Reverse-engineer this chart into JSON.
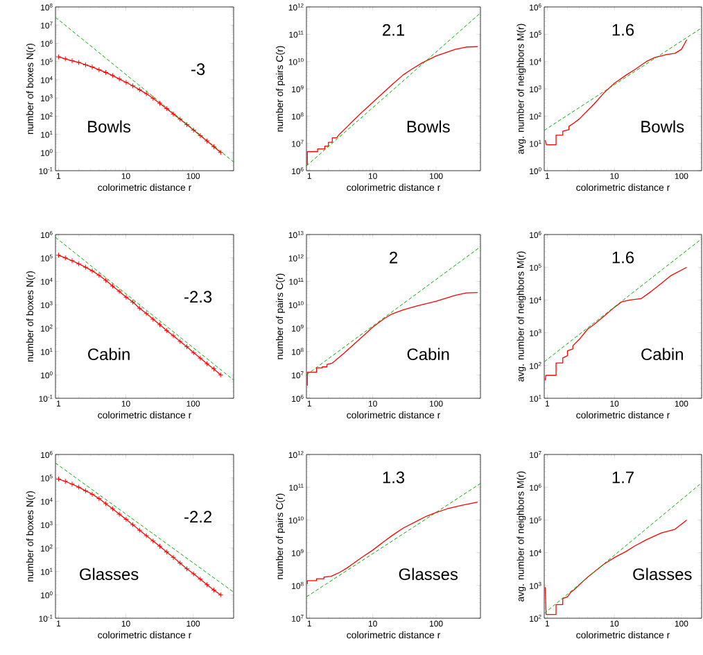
{
  "chart_data": [
    {
      "type": "line",
      "xlabel": "colorimetric distance r",
      "ylabel": "number of boxes N(r)",
      "annotations": [
        "-3",
        "Bowls"
      ],
      "log": "xy",
      "xlim": [
        0.9,
        400
      ],
      "ylim": [
        0.1,
        100000000.0
      ],
      "xticks": [
        1,
        10,
        100
      ],
      "yticks": [
        {
          "value": 0.1,
          "label": "10$^{-1}$"
        },
        {
          "value": 1,
          "label": "10$^{0}$"
        },
        {
          "value": 10,
          "label": "10$^{1}$"
        },
        {
          "value": 100,
          "label": "10$^{2}$"
        },
        {
          "value": 1000.0,
          "label": "10$^{3}$"
        },
        {
          "value": 10000.0,
          "label": "10$^{4}$"
        },
        {
          "value": 100000.0,
          "label": "10$^{5}$"
        },
        {
          "value": 1000000.0,
          "label": "10$^{6}$"
        },
        {
          "value": 10000000.0,
          "label": "10$^{7}$"
        },
        {
          "value": 100000000.0,
          "label": "10$^{8}$"
        }
      ],
      "series": [
        {
          "color": "#ff0000",
          "marker": "cross",
          "x": [
            1,
            1.26,
            1.59,
            2,
            2.52,
            3.17,
            4,
            5.04,
            6.35,
            8,
            10.1,
            12.7,
            16,
            20.2,
            25.4,
            32,
            40.3,
            50.8,
            64,
            80.6,
            101.6,
            128,
            161,
            203,
            256
          ],
          "values": [
            180000.0,
            140000.0,
            110000.0,
            89000.0,
            66000.0,
            50000.0,
            35000.0,
            25000.0,
            17000.0,
            11000.0,
            7100.0,
            4600.0,
            2800.0,
            1700.0,
            950,
            500,
            260,
            130,
            68,
            34,
            17,
            8.5,
            4.3,
            2.1,
            1
          ]
        },
        {
          "color": "#00b000",
          "line_style": "dashed",
          "x": [
            0.9,
            400
          ],
          "values": [
            27000000.0,
            0.3
          ]
        }
      ]
    },
    {
      "type": "line",
      "xlabel": "colorimetric distance r",
      "ylabel": "number of pairs C(r)",
      "annotations": [
        "2.1",
        "Bowls"
      ],
      "log": "xy",
      "xlim": [
        0.9,
        500
      ],
      "ylim": [
        1000000.0,
        1000000000000.0
      ],
      "xticks": [
        1,
        10,
        100
      ],
      "yticks": [
        {
          "value": 1000000.0,
          "label": "10$^{6}$"
        },
        {
          "value": 10000000.0,
          "label": "10$^{7}$"
        },
        {
          "value": 100000000.0,
          "label": "10$^{8}$"
        },
        {
          "value": 1000000000.0,
          "label": "10$^{9}$"
        },
        {
          "value": 10000000000.0,
          "label": "10$^{10}$"
        },
        {
          "value": 100000000000.0,
          "label": "10$^{11}$"
        },
        {
          "value": 1000000000000.0,
          "label": "10$^{12}$"
        }
      ],
      "series": [
        {
          "color": "#ff0000",
          "x": [
            0.93,
            0.93,
            1.35,
            1.35,
            1.75,
            1.75,
            2.0,
            2.0,
            2.3,
            2.3,
            2.7,
            3,
            4,
            5,
            7,
            10,
            15,
            20,
            30,
            40,
            60,
            100,
            150,
            200,
            300,
            450
          ],
          "values": [
            1600000.0,
            5000000.0,
            5000000.0,
            6300000.0,
            6300000.0,
            7900000.0,
            7900000.0,
            11000000.0,
            11000000.0,
            16000000.0,
            16000000.0,
            22000000.0,
            42000000.0,
            71000000.0,
            150000000.0,
            320000000.0,
            760000000.0,
            1400000000.0,
            3200000000.0,
            5000000000.0,
            8900000000.0,
            16000000000.0,
            22000000000.0,
            28000000000.0,
            34000000000.0,
            35000000000.0
          ]
        },
        {
          "color": "#00b000",
          "line_style": "dashed",
          "x": [
            0.9,
            500
          ],
          "values": [
            1500000.0,
            600000000000.0
          ]
        }
      ]
    },
    {
      "type": "line",
      "xlabel": "colorimetric distance r",
      "ylabel": "avg. number of neighbors M(r)",
      "annotations": [
        "1.6",
        "Bowls"
      ],
      "log": "xy",
      "xlim": [
        0.9,
        200
      ],
      "ylim": [
        1,
        1000000.0
      ],
      "xticks": [
        1,
        10,
        100
      ],
      "yticks": [
        {
          "value": 1,
          "label": "10$^{0}$"
        },
        {
          "value": 10,
          "label": "10$^{1}$"
        },
        {
          "value": 100,
          "label": "10$^{2}$"
        },
        {
          "value": 1000.0,
          "label": "10$^{3}$"
        },
        {
          "value": 10000.0,
          "label": "10$^{4}$"
        },
        {
          "value": 100000.0,
          "label": "10$^{5}$"
        },
        {
          "value": 1000000.0,
          "label": "10$^{6}$"
        }
      ],
      "series": [
        {
          "color": "#ff0000",
          "x": [
            0.93,
            0.97,
            1.35,
            1.35,
            1.7,
            1.7,
            2.1,
            2.1,
            2.5,
            3,
            4,
            5,
            7,
            10,
            15,
            20,
            30,
            40,
            60,
            80,
            100,
            120
          ],
          "values": [
            13,
            8.9,
            8.9,
            20,
            20,
            28,
            32,
            42,
            56,
            79,
            160,
            280,
            710,
            1600.0,
            3200.0,
            5000.0,
            10000.0,
            14000.0,
            18000.0,
            20000.0,
            28000.0,
            63000.0
          ]
        },
        {
          "color": "#00b000",
          "line_style": "dashed",
          "x": [
            0.9,
            200
          ],
          "values": [
            30,
            170000.0
          ]
        }
      ]
    },
    {
      "type": "line",
      "xlabel": "colorimetric distance r",
      "ylabel": "number of boxes N(r)",
      "annotations": [
        "-2.3",
        "Cabin"
      ],
      "log": "xy",
      "xlim": [
        0.9,
        400
      ],
      "ylim": [
        0.1,
        1000000.0
      ],
      "xticks": [
        1,
        10,
        100
      ],
      "yticks": [
        {
          "value": 0.1,
          "label": "10$^{-1}$"
        },
        {
          "value": 1,
          "label": "10$^{0}$"
        },
        {
          "value": 10,
          "label": "10$^{1}$"
        },
        {
          "value": 100,
          "label": "10$^{2}$"
        },
        {
          "value": 1000.0,
          "label": "10$^{3}$"
        },
        {
          "value": 10000.0,
          "label": "10$^{4}$"
        },
        {
          "value": 100000.0,
          "label": "10$^{5}$"
        },
        {
          "value": 1000000.0,
          "label": "10$^{6}$"
        }
      ],
      "series": [
        {
          "color": "#ff0000",
          "marker": "cross",
          "x": [
            1,
            1.26,
            1.59,
            2,
            2.52,
            3.17,
            4,
            5.04,
            6.35,
            8,
            10.1,
            12.7,
            16,
            20.2,
            25.4,
            32,
            40.3,
            50.8,
            64,
            80.6,
            101.6,
            128,
            161,
            203,
            256
          ],
          "values": [
            130000.0,
            100000.0,
            76000.0,
            56000.0,
            40000.0,
            28000.0,
            18000.0,
            11000.0,
            6300.0,
            3700.0,
            2100.0,
            1300.0,
            710,
            420,
            240,
            140,
            79,
            47,
            27,
            16,
            8.9,
            5.2,
            3,
            1.8,
            1
          ]
        },
        {
          "color": "#00b000",
          "line_style": "dashed",
          "x": [
            0.9,
            400
          ],
          "values": [
            760000.0,
            0.6
          ]
        }
      ]
    },
    {
      "type": "line",
      "xlabel": "colorimetric distance r",
      "ylabel": "number of pairs C(r)",
      "annotations": [
        "2",
        "Cabin"
      ],
      "log": "xy",
      "xlim": [
        0.9,
        500
      ],
      "ylim": [
        1000000.0,
        10000000000000.0
      ],
      "xticks": [
        1,
        10,
        100
      ],
      "yticks": [
        {
          "value": 1000000.0,
          "label": "10$^{6}$"
        },
        {
          "value": 10000000.0,
          "label": "10$^{7}$"
        },
        {
          "value": 100000000.0,
          "label": "10$^{8}$"
        },
        {
          "value": 1000000000.0,
          "label": "10$^{9}$"
        },
        {
          "value": 10000000000.0,
          "label": "10$^{10}$"
        },
        {
          "value": 100000000000.0,
          "label": "10$^{11}$"
        },
        {
          "value": 1000000000000.0,
          "label": "10$^{12}$"
        },
        {
          "value": 10000000000000.0,
          "label": "10$^{13}$"
        }
      ],
      "series": [
        {
          "color": "#ff0000",
          "x": [
            0.93,
            0.93,
            1.3,
            1.3,
            1.6,
            1.6,
            1.9,
            1.9,
            2.3,
            2.8,
            3.5,
            5,
            7,
            10,
            15,
            20,
            30,
            50,
            100,
            200,
            300,
            450
          ],
          "values": [
            3500000.0,
            13000000.0,
            13000000.0,
            20000000.0,
            20000000.0,
            22000000.0,
            22000000.0,
            28000000.0,
            32000000.0,
            50000000.0,
            83000000.0,
            200000000.0,
            450000000.0,
            1100000000.0,
            2500000000.0,
            4000000000.0,
            6000000000.0,
            8900000000.0,
            14000000000.0,
            25000000000.0,
            32000000000.0,
            33000000000.0
          ]
        },
        {
          "color": "#00b000",
          "line_style": "dashed",
          "x": [
            0.9,
            500
          ],
          "values": [
            10000000.0,
            3000000000000.0
          ]
        }
      ]
    },
    {
      "type": "line",
      "xlabel": "colorimetric distance r",
      "ylabel": "avg. number of neighbors M(r)",
      "annotations": [
        "1.6",
        "Cabin"
      ],
      "log": "xy",
      "xlim": [
        0.9,
        200
      ],
      "ylim": [
        10,
        1000000.0
      ],
      "xticks": [
        1,
        10,
        100
      ],
      "yticks": [
        {
          "value": 10,
          "label": "10$^{1}$"
        },
        {
          "value": 100,
          "label": "10$^{2}$"
        },
        {
          "value": 1000.0,
          "label": "10$^{3}$"
        },
        {
          "value": 10000.0,
          "label": "10$^{4}$"
        },
        {
          "value": 100000.0,
          "label": "10$^{5}$"
        },
        {
          "value": 1000000.0,
          "label": "10$^{6}$"
        }
      ],
      "series": [
        {
          "color": "#ff0000",
          "x": [
            0.93,
            0.95,
            1.35,
            1.35,
            1.7,
            1.7,
            2.0,
            2.0,
            2.4,
            2.4,
            3,
            4,
            5,
            7,
            10,
            13,
            17,
            25,
            35,
            50,
            70,
            120
          ],
          "values": [
            35,
            50,
            50,
            120,
            120,
            170,
            200,
            280,
            320,
            400,
            630,
            1300.0,
            1800.0,
            3200.0,
            6000.0,
            8900.0,
            10000.0,
            11000.0,
            18000.0,
            32000.0,
            56000.0,
            100000.0
          ]
        },
        {
          "color": "#00b000",
          "line_style": "dashed",
          "x": [
            0.9,
            200
          ],
          "values": [
            130,
            740000.0
          ]
        }
      ]
    },
    {
      "type": "line",
      "xlabel": "colorimetric distance r",
      "ylabel": "number of boxes N(r)",
      "annotations": [
        "-2.2",
        "Glasses"
      ],
      "log": "xy",
      "xlim": [
        0.9,
        400
      ],
      "ylim": [
        0.1,
        1000000.0
      ],
      "xticks": [
        1,
        10,
        100
      ],
      "yticks": [
        {
          "value": 0.1,
          "label": "10$^{-1}$"
        },
        {
          "value": 1,
          "label": "10$^{0}$"
        },
        {
          "value": 10,
          "label": "10$^{1}$"
        },
        {
          "value": 100,
          "label": "10$^{2}$"
        },
        {
          "value": 1000.0,
          "label": "10$^{3}$"
        },
        {
          "value": 10000.0,
          "label": "10$^{4}$"
        },
        {
          "value": 100000.0,
          "label": "10$^{5}$"
        },
        {
          "value": 1000000.0,
          "label": "10$^{6}$"
        }
      ],
      "series": [
        {
          "color": "#ff0000",
          "marker": "cross",
          "x": [
            1,
            1.26,
            1.59,
            2,
            2.52,
            3.17,
            4,
            5.04,
            6.35,
            8,
            10.1,
            12.7,
            16,
            20.2,
            25.4,
            32,
            40.3,
            50.8,
            64,
            80.6,
            101.6,
            128,
            161,
            203,
            256
          ],
          "values": [
            89000.0,
            71000.0,
            54000.0,
            40000.0,
            28000.0,
            20000.0,
            13000.0,
            7900.0,
            4800.0,
            2800.0,
            1700.0,
            1000.0,
            580,
            340,
            200,
            120,
            68,
            40,
            23,
            13,
            7.9,
            4.7,
            2.7,
            1.6,
            1
          ]
        },
        {
          "color": "#00b000",
          "line_style": "dashed",
          "x": [
            0.9,
            400
          ],
          "values": [
            430000.0,
            1.3
          ]
        }
      ]
    },
    {
      "type": "line",
      "xlabel": "colorimetric distance r",
      "ylabel": "number of pairs C(r)",
      "annotations": [
        "1.3",
        "Glasses"
      ],
      "log": "xy",
      "xlim": [
        0.9,
        500
      ],
      "ylim": [
        10000000.0,
        1000000000000.0
      ],
      "xticks": [
        1,
        10,
        100
      ],
      "yticks": [
        {
          "value": 10000000.0,
          "label": "10$^{7}$"
        },
        {
          "value": 100000000.0,
          "label": "10$^{8}$"
        },
        {
          "value": 1000000000.0,
          "label": "10$^{9}$"
        },
        {
          "value": 10000000000.0,
          "label": "10$^{10}$"
        },
        {
          "value": 100000000000.0,
          "label": "10$^{11}$"
        },
        {
          "value": 1000000000000.0,
          "label": "10$^{12}$"
        }
      ],
      "series": [
        {
          "color": "#ff0000",
          "x": [
            0.93,
            0.93,
            1.3,
            1.3,
            1.7,
            1.7,
            2.2,
            3,
            4,
            5,
            7,
            10,
            15,
            20,
            30,
            50,
            70,
            100,
            150,
            250,
            450
          ],
          "values": [
            110000000.0,
            140000000.0,
            140000000.0,
            160000000.0,
            160000000.0,
            180000000.0,
            190000000.0,
            250000000.0,
            350000000.0,
            480000000.0,
            760000000.0,
            1200000000.0,
            2200000000.0,
            3300000000.0,
            5600000000.0,
            9300000000.0,
            13000000000.0,
            17000000000.0,
            22000000000.0,
            28000000000.0,
            35000000000.0
          ]
        },
        {
          "color": "#00b000",
          "line_style": "dashed",
          "x": [
            0.9,
            500
          ],
          "values": [
            45000000.0,
            130000000000.0
          ]
        }
      ]
    },
    {
      "type": "line",
      "xlabel": "colorimetric distance r",
      "ylabel": "avg. number of neighbors M(r)",
      "annotations": [
        "1.7",
        "Glasses"
      ],
      "log": "xy",
      "xlim": [
        0.9,
        200
      ],
      "ylim": [
        100,
        10000000.0
      ],
      "xticks": [
        1,
        10,
        100
      ],
      "yticks": [
        {
          "value": 100,
          "label": "10$^{2}$"
        },
        {
          "value": 1000.0,
          "label": "10$^{3}$"
        },
        {
          "value": 10000.0,
          "label": "10$^{4}$"
        },
        {
          "value": 100000.0,
          "label": "10$^{5}$"
        },
        {
          "value": 1000000.0,
          "label": "10$^{6}$"
        },
        {
          "value": 10000000.0,
          "label": "10$^{7}$"
        }
      ],
      "series": [
        {
          "color": "#ff0000",
          "x": [
            0.93,
            0.96,
            1.35,
            1.35,
            1.7,
            1.7,
            2.0,
            2.2,
            2.6,
            3,
            4,
            5,
            7,
            10,
            15,
            20,
            30,
            50,
            80,
            120
          ],
          "values": [
            890,
            130,
            130,
            260,
            260,
            400,
            450,
            600,
            790,
            1050.0,
            1800.0,
            2600.0,
            4500.0,
            7100.0,
            11000.0,
            16000.0,
            25000.0,
            40000.0,
            52000.0,
            100000.0
          ]
        },
        {
          "color": "#00b000",
          "line_style": "dashed",
          "x": [
            0.9,
            200
          ],
          "values": [
            140,
            1360000.0
          ]
        }
      ]
    }
  ]
}
